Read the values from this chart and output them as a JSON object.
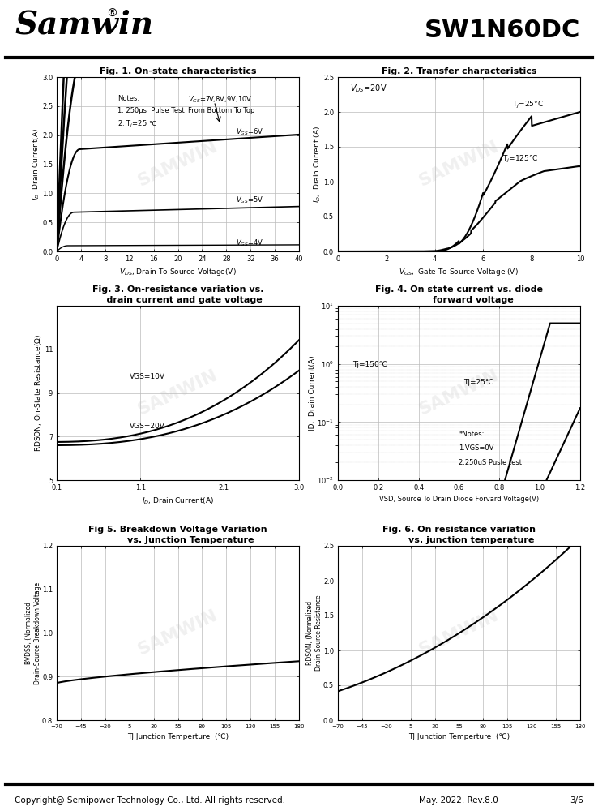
{
  "title_left": "Samwin",
  "title_right": "SW1N60DC",
  "fig1_title": "Fig. 1. On-state characteristics",
  "fig2_title": "Fig. 2. Transfer characteristics",
  "fig3_title_l1": "Fig. 3. On-resistance variation vs.",
  "fig3_title_l2": "    drain current and gate voltage",
  "fig4_title_l1": "Fig. 4. On state current vs. diode",
  "fig4_title_l2": "         forward voltage",
  "fig5_title_l1": "Fig 5. Breakdown Voltage Variation",
  "fig5_title_l2": "        vs. Junction Temperature",
  "fig6_title_l1": "Fig. 6. On resistance variation",
  "fig6_title_l2": "        vs. junction temperature",
  "footer_left": "Copyright@ Semipower Technology Co., Ltd. All rights reserved.",
  "footer_right": "May. 2022. Rev.8.0",
  "footer_page": "3/6",
  "bg_color": "#ffffff",
  "plot_bg_color": "#ffffff",
  "grid_color": "#bbbbbb",
  "line_color": "#000000"
}
